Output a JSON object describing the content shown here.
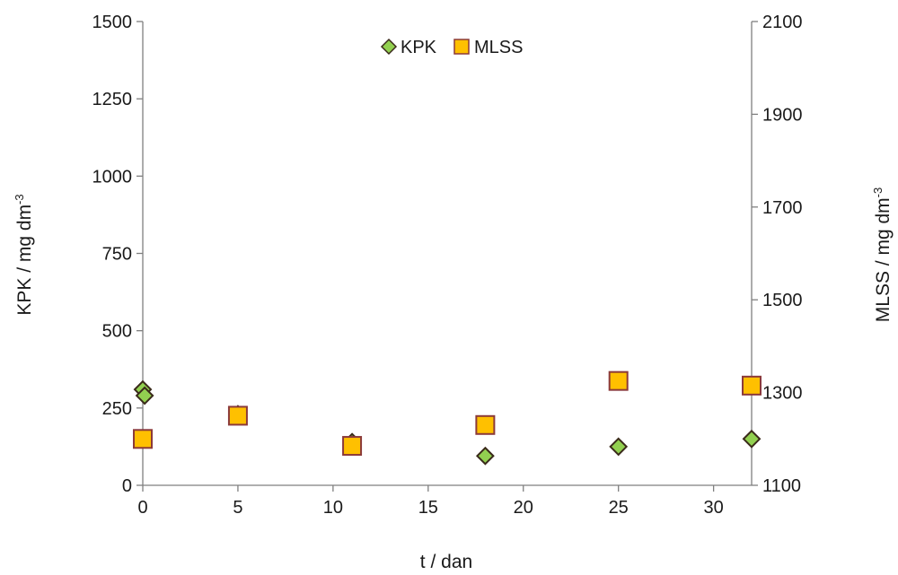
{
  "chart_data": {
    "type": "scatter",
    "xlabel": "t / dan",
    "ylabel": "KPK / mg dm",
    "ylabel_sup": "-3",
    "y2label": "MLSS / mg dm",
    "y2label_sup": "-3",
    "xlim": [
      0,
      32
    ],
    "ylim": [
      0,
      1500
    ],
    "y2lim": [
      1100,
      2100
    ],
    "x_ticks": [
      0,
      5,
      10,
      15,
      20,
      25,
      30
    ],
    "y_ticks": [
      0,
      250,
      500,
      750,
      1000,
      1250,
      1500
    ],
    "y2_ticks": [
      1100,
      1300,
      1500,
      1700,
      1900,
      2100
    ],
    "grid": false,
    "legend_position": "top-center",
    "series": [
      {
        "name": "KPK",
        "axis": "left",
        "marker": "diamond",
        "color": "#92D050",
        "edge_color": "#3a2a1a",
        "points": [
          {
            "x": 0,
            "y": 310
          },
          {
            "x": 0.1,
            "y": 290
          },
          {
            "x": 5,
            "y": 230
          },
          {
            "x": 11,
            "y": 140
          },
          {
            "x": 18,
            "y": 95
          },
          {
            "x": 25,
            "y": 125
          },
          {
            "x": 32,
            "y": 150
          }
        ]
      },
      {
        "name": "MLSS",
        "axis": "right",
        "marker": "square",
        "color": "#FFC000",
        "edge_color": "#8B3A3A",
        "points": [
          {
            "x": 0,
            "y": 1200
          },
          {
            "x": 5,
            "y": 1250
          },
          {
            "x": 11,
            "y": 1185
          },
          {
            "x": 18,
            "y": 1230
          },
          {
            "x": 25,
            "y": 1325
          },
          {
            "x": 32,
            "y": 1315
          }
        ]
      }
    ]
  }
}
